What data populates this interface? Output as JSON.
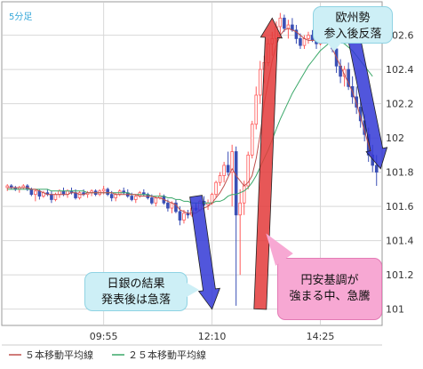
{
  "chart_data": {
    "type": "candlestick",
    "timeframe_label": "5分足",
    "yticks": [
      101,
      101.2,
      101.4,
      101.6,
      101.8,
      102,
      102.2,
      102.4,
      102.6
    ],
    "ylim": [
      100.91,
      102.79
    ],
    "xticks": [
      {
        "label": "09:55",
        "index": 24
      },
      {
        "label": "12:10",
        "index": 51
      },
      {
        "label": "14:25",
        "index": 78
      }
    ],
    "ohlc": [
      [
        101.71,
        101.73,
        101.69,
        101.72
      ],
      [
        101.72,
        101.73,
        101.7,
        101.71
      ],
      [
        101.71,
        101.72,
        101.69,
        101.7
      ],
      [
        101.7,
        101.72,
        101.68,
        101.71
      ],
      [
        101.71,
        101.73,
        101.7,
        101.72
      ],
      [
        101.72,
        101.73,
        101.69,
        101.7
      ],
      [
        101.7,
        101.71,
        101.66,
        101.67
      ],
      [
        101.67,
        101.7,
        101.63,
        101.69
      ],
      [
        101.69,
        101.7,
        101.64,
        101.66
      ],
      [
        101.66,
        101.69,
        101.65,
        101.68
      ],
      [
        101.68,
        101.7,
        101.66,
        101.67
      ],
      [
        101.67,
        101.69,
        101.62,
        101.64
      ],
      [
        101.64,
        101.68,
        101.63,
        101.67
      ],
      [
        101.67,
        101.7,
        101.65,
        101.69
      ],
      [
        101.69,
        101.71,
        101.66,
        101.67
      ],
      [
        101.67,
        101.7,
        101.65,
        101.69
      ],
      [
        101.69,
        101.71,
        101.67,
        101.68
      ],
      [
        101.68,
        101.7,
        101.64,
        101.65
      ],
      [
        101.65,
        101.69,
        101.64,
        101.68
      ],
      [
        101.68,
        101.7,
        101.66,
        101.67
      ],
      [
        101.67,
        101.69,
        101.65,
        101.68
      ],
      [
        101.68,
        101.7,
        101.66,
        101.69
      ],
      [
        101.69,
        101.7,
        101.66,
        101.67
      ],
      [
        101.67,
        101.7,
        101.66,
        101.69
      ],
      [
        101.69,
        101.72,
        101.67,
        101.7
      ],
      [
        101.7,
        101.71,
        101.66,
        101.67
      ],
      [
        101.67,
        101.69,
        101.63,
        101.65
      ],
      [
        101.65,
        101.68,
        101.63,
        101.67
      ],
      [
        101.67,
        101.7,
        101.66,
        101.69
      ],
      [
        101.69,
        101.71,
        101.67,
        101.68
      ],
      [
        101.68,
        101.7,
        101.65,
        101.66
      ],
      [
        101.66,
        101.68,
        101.63,
        101.64
      ],
      [
        101.64,
        101.67,
        101.62,
        101.66
      ],
      [
        101.66,
        101.69,
        101.65,
        101.68
      ],
      [
        101.68,
        101.7,
        101.66,
        101.67
      ],
      [
        101.67,
        101.68,
        101.64,
        101.65
      ],
      [
        101.65,
        101.67,
        101.61,
        101.62
      ],
      [
        101.62,
        101.66,
        101.6,
        101.65
      ],
      [
        101.65,
        101.68,
        101.64,
        101.66
      ],
      [
        101.66,
        101.67,
        101.61,
        101.62
      ],
      [
        101.62,
        101.64,
        101.57,
        101.59
      ],
      [
        101.59,
        101.63,
        101.56,
        101.62
      ],
      [
        101.62,
        101.64,
        101.56,
        101.57
      ],
      [
        101.57,
        101.6,
        101.49,
        101.52
      ],
      [
        101.52,
        101.58,
        101.5,
        101.56
      ],
      [
        101.56,
        101.58,
        101.53,
        101.55
      ],
      [
        101.55,
        101.6,
        101.54,
        101.59
      ],
      [
        101.59,
        101.62,
        101.57,
        101.58
      ],
      [
        101.58,
        101.64,
        101.57,
        101.63
      ],
      [
        101.63,
        101.66,
        101.6,
        101.61
      ],
      [
        101.61,
        101.64,
        101.58,
        101.62
      ],
      [
        101.62,
        101.68,
        101.61,
        101.67
      ],
      [
        101.67,
        101.75,
        101.65,
        101.74
      ],
      [
        101.74,
        101.8,
        101.72,
        101.78
      ],
      [
        101.78,
        101.86,
        101.74,
        101.84
      ],
      [
        101.84,
        101.92,
        101.78,
        101.8
      ],
      [
        101.8,
        101.96,
        101.6,
        101.92
      ],
      [
        101.92,
        101.95,
        101.02,
        101.55
      ],
      [
        101.55,
        101.7,
        101.2,
        101.62
      ],
      [
        101.62,
        101.75,
        101.55,
        101.72
      ],
      [
        101.72,
        101.92,
        101.7,
        101.9
      ],
      [
        101.9,
        102.1,
        101.88,
        102.08
      ],
      [
        102.08,
        102.3,
        102.05,
        102.25
      ],
      [
        102.25,
        102.45,
        102.2,
        102.4
      ],
      [
        102.4,
        102.48,
        102.32,
        102.44
      ],
      [
        102.44,
        102.58,
        102.42,
        102.55
      ],
      [
        102.55,
        102.62,
        102.48,
        102.58
      ],
      [
        102.58,
        102.68,
        102.55,
        102.65
      ],
      [
        102.65,
        102.73,
        102.6,
        102.7
      ],
      [
        102.7,
        102.72,
        102.62,
        102.64
      ],
      [
        102.64,
        102.69,
        102.58,
        102.66
      ],
      [
        102.66,
        102.7,
        102.62,
        102.63
      ],
      [
        102.63,
        102.66,
        102.55,
        102.58
      ],
      [
        102.58,
        102.61,
        102.52,
        102.54
      ],
      [
        102.54,
        102.6,
        102.52,
        102.58
      ],
      [
        102.58,
        102.62,
        102.55,
        102.6
      ],
      [
        102.6,
        102.63,
        102.56,
        102.57
      ],
      [
        102.57,
        102.6,
        102.52,
        102.55
      ],
      [
        102.55,
        102.62,
        102.54,
        102.6
      ],
      [
        102.6,
        102.65,
        102.58,
        102.63
      ],
      [
        102.63,
        102.66,
        102.6,
        102.62
      ],
      [
        102.62,
        102.64,
        102.5,
        102.52
      ],
      [
        102.52,
        102.56,
        102.38,
        102.42
      ],
      [
        102.42,
        102.46,
        102.32,
        102.36
      ],
      [
        102.36,
        102.42,
        102.3,
        102.4
      ],
      [
        102.4,
        102.44,
        102.28,
        102.3
      ],
      [
        102.3,
        102.36,
        102.2,
        102.24
      ],
      [
        102.24,
        102.3,
        102.14,
        102.18
      ],
      [
        102.18,
        102.22,
        102.06,
        102.1
      ],
      [
        102.1,
        102.14,
        101.98,
        102.02
      ],
      [
        102.02,
        102.06,
        101.86,
        101.9
      ],
      [
        101.9,
        101.96,
        101.8,
        101.84
      ],
      [
        101.84,
        101.9,
        101.72,
        101.8
      ]
    ],
    "ma5": [
      101.71,
      101.71,
      101.71,
      101.71,
      101.71,
      101.71,
      101.7,
      101.7,
      101.69,
      101.68,
      101.67,
      101.67,
      101.67,
      101.67,
      101.67,
      101.67,
      101.68,
      101.68,
      101.67,
      101.67,
      101.68,
      101.68,
      101.68,
      101.68,
      101.68,
      101.68,
      101.68,
      101.67,
      101.67,
      101.67,
      101.67,
      101.67,
      101.67,
      101.66,
      101.66,
      101.66,
      101.66,
      101.65,
      101.65,
      101.64,
      101.63,
      101.62,
      101.61,
      101.58,
      101.57,
      101.56,
      101.56,
      101.56,
      101.58,
      101.59,
      101.6,
      101.62,
      101.65,
      101.68,
      101.72,
      101.77,
      101.82,
      101.78,
      101.75,
      101.72,
      101.74,
      101.78,
      101.88,
      102.02,
      102.2,
      102.33,
      102.45,
      102.54,
      102.6,
      102.63,
      102.64,
      102.63,
      102.62,
      102.6,
      102.58,
      102.57,
      102.57,
      102.57,
      102.58,
      102.59,
      102.56,
      102.52,
      102.47,
      102.42,
      102.37,
      102.32,
      102.27,
      102.2,
      102.12,
      102.04,
      101.96,
      101.88
    ],
    "ma25": [
      101.7,
      101.7,
      101.7,
      101.7,
      101.7,
      101.7,
      101.7,
      101.7,
      101.7,
      101.7,
      101.7,
      101.69,
      101.69,
      101.69,
      101.69,
      101.69,
      101.69,
      101.69,
      101.69,
      101.69,
      101.68,
      101.68,
      101.68,
      101.68,
      101.68,
      101.68,
      101.68,
      101.68,
      101.68,
      101.68,
      101.68,
      101.67,
      101.67,
      101.67,
      101.67,
      101.67,
      101.66,
      101.66,
      101.66,
      101.66,
      101.65,
      101.65,
      101.64,
      101.64,
      101.63,
      101.63,
      101.62,
      101.62,
      101.62,
      101.62,
      101.62,
      101.62,
      101.63,
      101.63,
      101.64,
      101.66,
      101.67,
      101.67,
      101.68,
      101.69,
      101.71,
      101.74,
      101.78,
      101.83,
      101.88,
      101.93,
      101.99,
      102.05,
      102.11,
      102.16,
      102.21,
      102.26,
      102.3,
      102.34,
      102.38,
      102.42,
      102.45,
      102.48,
      102.51,
      102.53,
      102.55,
      102.56,
      102.56,
      102.56,
      102.55,
      102.53,
      102.51,
      102.48,
      102.45,
      102.42,
      102.39,
      102.36
    ],
    "legend": [
      {
        "label": "５本移動平均線",
        "color": "#c0504d"
      },
      {
        "label": "２５本移動平均線",
        "color": "#3aa869"
      }
    ],
    "arrows": [
      {
        "from": [
          101.66,
          47
        ],
        "to": [
          101.0,
          51
        ],
        "color": "#3338d6"
      },
      {
        "from": [
          101.0,
          63
        ],
        "to": [
          102.7,
          66
        ],
        "color": "#e33a3a"
      },
      {
        "from": [
          102.63,
          86
        ],
        "to": [
          101.82,
          93
        ],
        "color": "#3338d6"
      }
    ],
    "annotations": [
      {
        "text_lines": [
          "欧州勢",
          "参入後反落"
        ],
        "style": "cyan"
      },
      {
        "text_lines": [
          "日銀の結果",
          "発表後は急落"
        ],
        "style": "cyan"
      },
      {
        "text_lines": [
          "円安基調が",
          "強まる中、急騰"
        ],
        "style": "pink"
      }
    ]
  },
  "colors": {
    "up_candle": "#ff5a5a",
    "down_candle": "#3a4fb5",
    "grid": "#d8d8d8",
    "axis_text": "#333333",
    "timeframe": "#35a7d9"
  }
}
